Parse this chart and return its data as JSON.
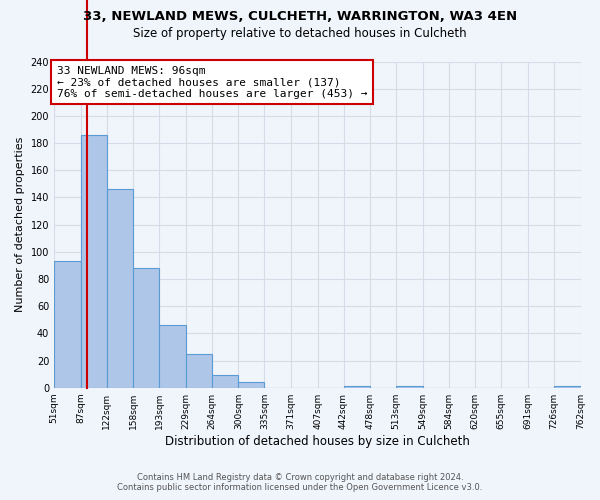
{
  "title": "33, NEWLAND MEWS, CULCHETH, WARRINGTON, WA3 4EN",
  "subtitle": "Size of property relative to detached houses in Culcheth",
  "xlabel": "Distribution of detached houses by size in Culcheth",
  "ylabel": "Number of detached properties",
  "bar_edges": [
    51,
    87,
    122,
    158,
    193,
    229,
    264,
    300,
    335,
    371,
    407,
    442,
    478,
    513,
    549,
    584,
    620,
    655,
    691,
    726,
    762
  ],
  "bar_heights": [
    93,
    186,
    146,
    88,
    46,
    25,
    9,
    4,
    0,
    0,
    0,
    1,
    0,
    1,
    0,
    0,
    0,
    0,
    0,
    1
  ],
  "bar_color": "#aec6e8",
  "bar_edge_color": "#5b9bd5",
  "property_size": 96,
  "property_line_color": "#cc0000",
  "annotation_text": "33 NEWLAND MEWS: 96sqm\n← 23% of detached houses are smaller (137)\n76% of semi-detached houses are larger (453) →",
  "annotation_box_color": "#ffffff",
  "annotation_box_edge_color": "#cc0000",
  "ylim": [
    0,
    240
  ],
  "yticks": [
    0,
    20,
    40,
    60,
    80,
    100,
    120,
    140,
    160,
    180,
    200,
    220,
    240
  ],
  "tick_labels": [
    "51sqm",
    "87sqm",
    "122sqm",
    "158sqm",
    "193sqm",
    "229sqm",
    "264sqm",
    "300sqm",
    "335sqm",
    "371sqm",
    "407sqm",
    "442sqm",
    "478sqm",
    "513sqm",
    "549sqm",
    "584sqm",
    "620sqm",
    "655sqm",
    "691sqm",
    "726sqm",
    "762sqm"
  ],
  "footer_line1": "Contains HM Land Registry data © Crown copyright and database right 2024.",
  "footer_line2": "Contains public sector information licensed under the Open Government Licence v3.0.",
  "grid_color": "#d4dce8",
  "background_color": "#f0f4fb"
}
